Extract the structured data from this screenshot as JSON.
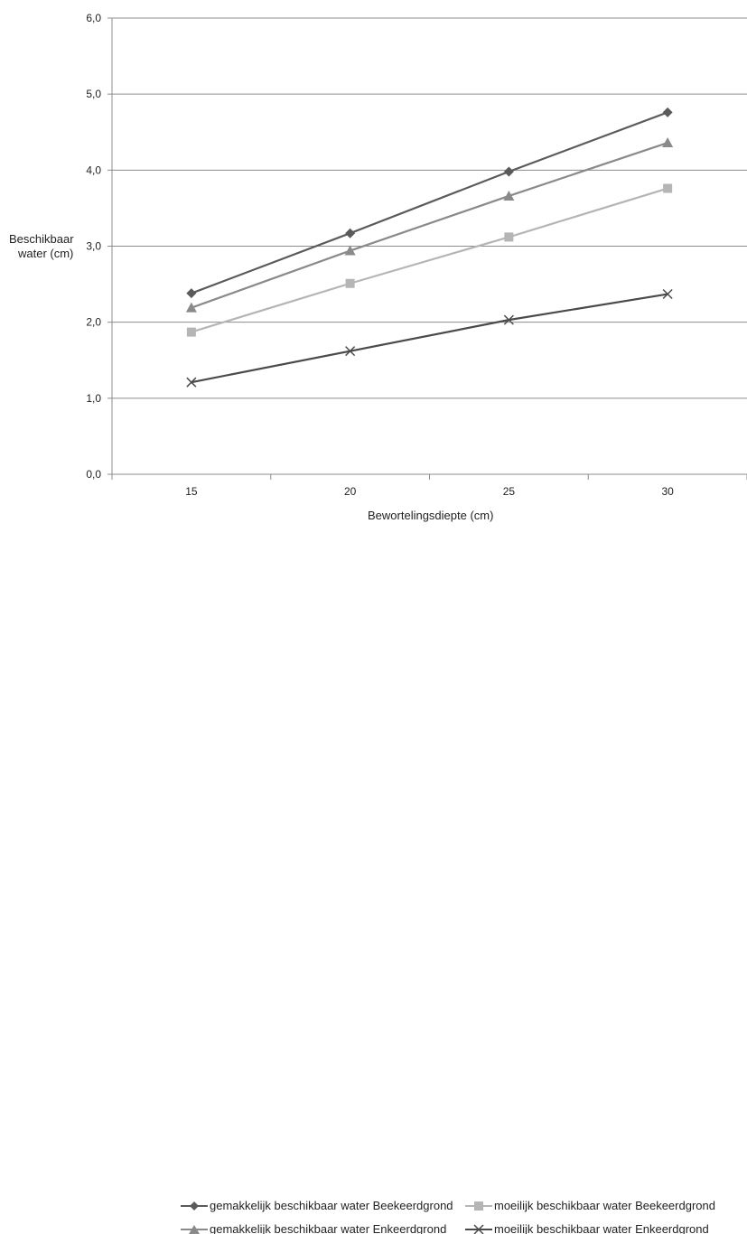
{
  "chart_data": {
    "type": "line",
    "title": "",
    "xlabel": "Bewortelingsdiepte  (cm)",
    "ylabel_lines": [
      "Beschikbaar",
      "water  (cm)"
    ],
    "x": [
      15,
      20,
      25,
      30
    ],
    "x_tick_labels": [
      "15",
      "20",
      "25",
      "30"
    ],
    "ylim": [
      0,
      6
    ],
    "y_ticks": [
      0,
      1,
      2,
      3,
      4,
      5,
      6
    ],
    "y_tick_labels": [
      "0,0",
      "1,0",
      "2,0",
      "3,0",
      "4,0",
      "5,0",
      "6,0"
    ],
    "grid": "horizontal",
    "legend_position": "bottom",
    "series": [
      {
        "name": "gemakkelijk beschikbaar water Beekeerdgrond",
        "values": [
          2.38,
          3.17,
          3.98,
          4.76
        ],
        "color": "#5a5a5a",
        "marker": "diamond"
      },
      {
        "name": "moeilijk beschikbaar water Beekeerdgrond",
        "values": [
          1.87,
          2.51,
          3.12,
          3.76
        ],
        "color": "#b5b5b5",
        "marker": "square"
      },
      {
        "name": "gemakkelijk beschikbaar water Enkeerdgrond",
        "values": [
          2.19,
          2.94,
          3.66,
          4.36
        ],
        "color": "#8a8a8a",
        "marker": "triangle"
      },
      {
        "name": "moeilijk beschikbaar water Enkeerdgrond",
        "values": [
          1.21,
          1.62,
          2.03,
          2.37
        ],
        "color": "#4a4a4a",
        "marker": "x"
      }
    ]
  }
}
